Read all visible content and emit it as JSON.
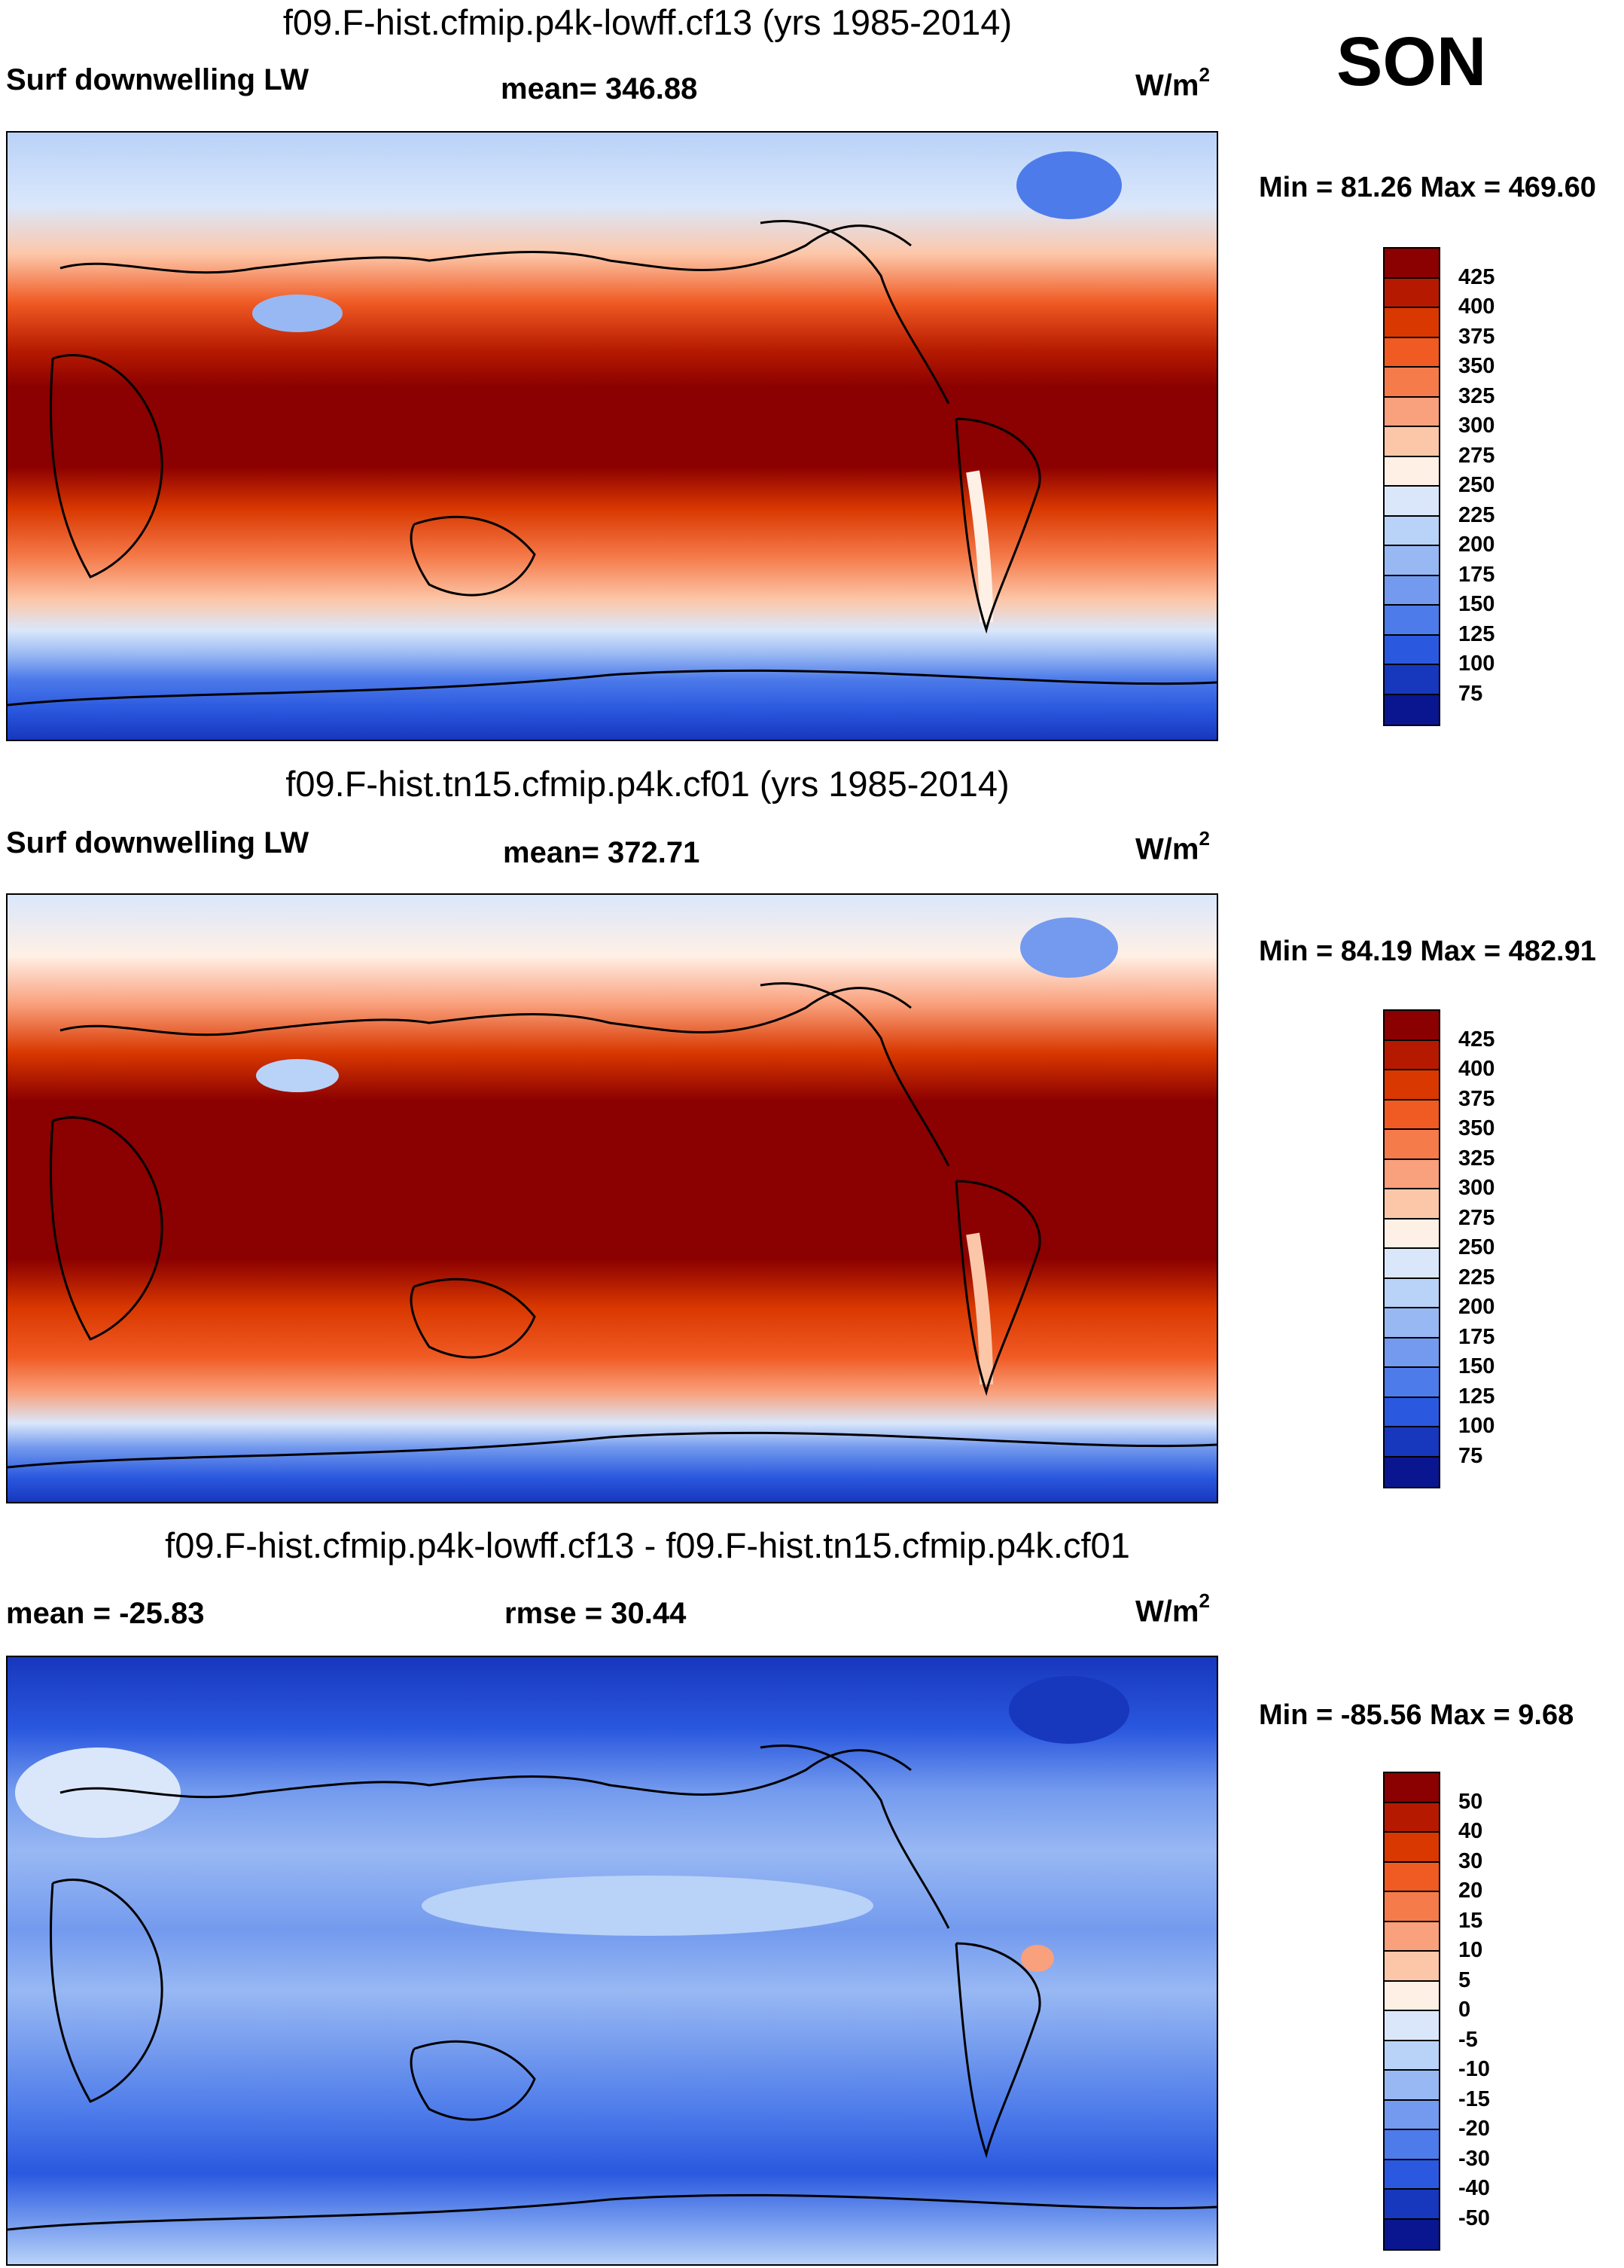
{
  "season": "SON",
  "panels": [
    {
      "title": "f09.F-hist.cfmip.p4k-lowff.cf13 (yrs 1985-2014)",
      "left_label": "Surf downwelling LW",
      "center_label": "mean= 346.88",
      "units_base": "W/m",
      "units_sup": "2",
      "minmax": "Min =  81.26 Max = 469.60",
      "colorbar": {
        "colors": [
          "#8b0000",
          "#b51a00",
          "#d93800",
          "#f05a23",
          "#f57b4b",
          "#f9a07c",
          "#fcc7a9",
          "#fff0e6",
          "#dae7fb",
          "#b9d2f8",
          "#98b8f3",
          "#739aee",
          "#4d7bea",
          "#2a58df",
          "#1737bd",
          "#0a1690"
        ],
        "ticks": [
          "425",
          "400",
          "375",
          "350",
          "325",
          "300",
          "275",
          "250",
          "225",
          "200",
          "175",
          "150",
          "125",
          "100",
          "75"
        ]
      },
      "map_description": "Global surface downwelling longwave, highest in tropics, lowest over Antarctica and Greenland"
    },
    {
      "title": "f09.F-hist.tn15.cfmip.p4k.cf01 (yrs 1985-2014)",
      "left_label": "Surf downwelling LW",
      "center_label": "mean= 372.71",
      "units_base": "W/m",
      "units_sup": "2",
      "minmax": "Min =  84.19 Max = 482.91",
      "colorbar": {
        "colors": [
          "#8b0000",
          "#b51a00",
          "#d93800",
          "#f05a23",
          "#f57b4b",
          "#f9a07c",
          "#fcc7a9",
          "#fff0e6",
          "#dae7fb",
          "#b9d2f8",
          "#98b8f3",
          "#739aee",
          "#4d7bea",
          "#2a58df",
          "#1737bd",
          "#0a1690"
        ],
        "ticks": [
          "425",
          "400",
          "375",
          "350",
          "325",
          "300",
          "275",
          "250",
          "225",
          "200",
          "175",
          "150",
          "125",
          "100",
          "75"
        ]
      }
    },
    {
      "title": "f09.F-hist.cfmip.p4k-lowff.cf13 - f09.F-hist.tn15.cfmip.p4k.cf01",
      "left_label": "mean = -25.83",
      "center_label": "rmse =  30.44",
      "units_base": "W/m",
      "units_sup": "2",
      "minmax": "Min = -85.56 Max =   9.68",
      "colorbar": {
        "colors": [
          "#8b0000",
          "#b51a00",
          "#d93800",
          "#f05a23",
          "#f57b4b",
          "#f9a07c",
          "#fcc7a9",
          "#fff0e6",
          "#dae7fb",
          "#b9d2f8",
          "#98b8f3",
          "#739aee",
          "#4d7bea",
          "#2a58df",
          "#1737bd",
          "#0a1690"
        ],
        "ticks": [
          "50",
          "40",
          "30",
          "20",
          "15",
          "10",
          "5",
          "0",
          "-5",
          "-10",
          "-15",
          "-20",
          "-30",
          "-40",
          "-50"
        ]
      }
    }
  ]
}
